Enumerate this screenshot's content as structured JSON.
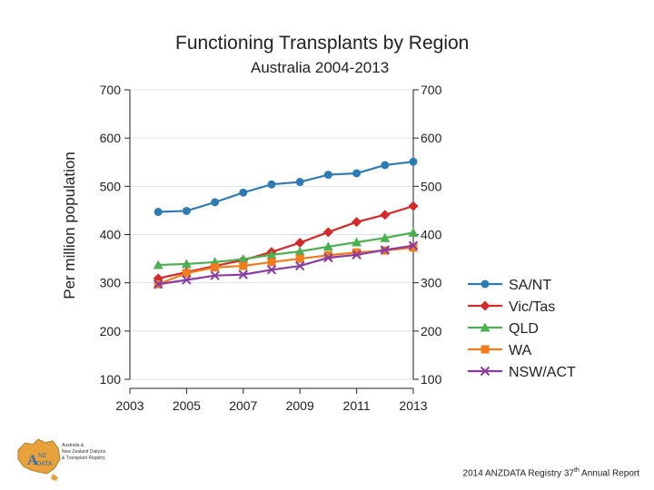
{
  "slide": {
    "logo_text": [
      "Australia &",
      "New Zealand Dialysis",
      "& Transplant Registry"
    ],
    "footer": {
      "prefix": "2014 ANZDATA Registry 37",
      "ordinal": "th",
      "suffix": " Annual Report"
    }
  },
  "chart_data": {
    "type": "line",
    "title": "Functioning Transplants by Region",
    "subtitle": "Australia 2004-2013",
    "xlabel": "",
    "ylabel": "Per million population",
    "xlim": [
      2003,
      2013
    ],
    "ylim": [
      100,
      700
    ],
    "xticks": [
      2003,
      2005,
      2007,
      2009,
      2011,
      2013
    ],
    "yticks": [
      100,
      200,
      300,
      400,
      500,
      600,
      700
    ],
    "x": [
      2004,
      2005,
      2006,
      2007,
      2008,
      2009,
      2010,
      2011,
      2012,
      2013
    ],
    "grid": true,
    "legend_position": "right",
    "series": [
      {
        "name": "SA/NT",
        "color": "#2e7bb4",
        "marker": "circle",
        "values": [
          447,
          449,
          467,
          487,
          504,
          509,
          524,
          527,
          544,
          551
        ]
      },
      {
        "name": "Vic/Tas",
        "color": "#d42a2a",
        "marker": "diamond",
        "values": [
          309,
          322,
          335,
          347,
          364,
          383,
          405,
          426,
          441,
          459
        ]
      },
      {
        "name": "QLD",
        "color": "#4caf50",
        "marker": "triangle",
        "values": [
          337,
          339,
          343,
          349,
          358,
          365,
          375,
          384,
          393,
          404
        ]
      },
      {
        "name": "WA",
        "color": "#f07c1e",
        "marker": "square",
        "values": [
          297,
          320,
          332,
          335,
          343,
          350,
          357,
          363,
          367,
          373
        ]
      },
      {
        "name": "NSW/ACT",
        "color": "#8a3da1",
        "marker": "x",
        "values": [
          297,
          306,
          315,
          317,
          327,
          335,
          352,
          358,
          368,
          377
        ]
      }
    ]
  }
}
